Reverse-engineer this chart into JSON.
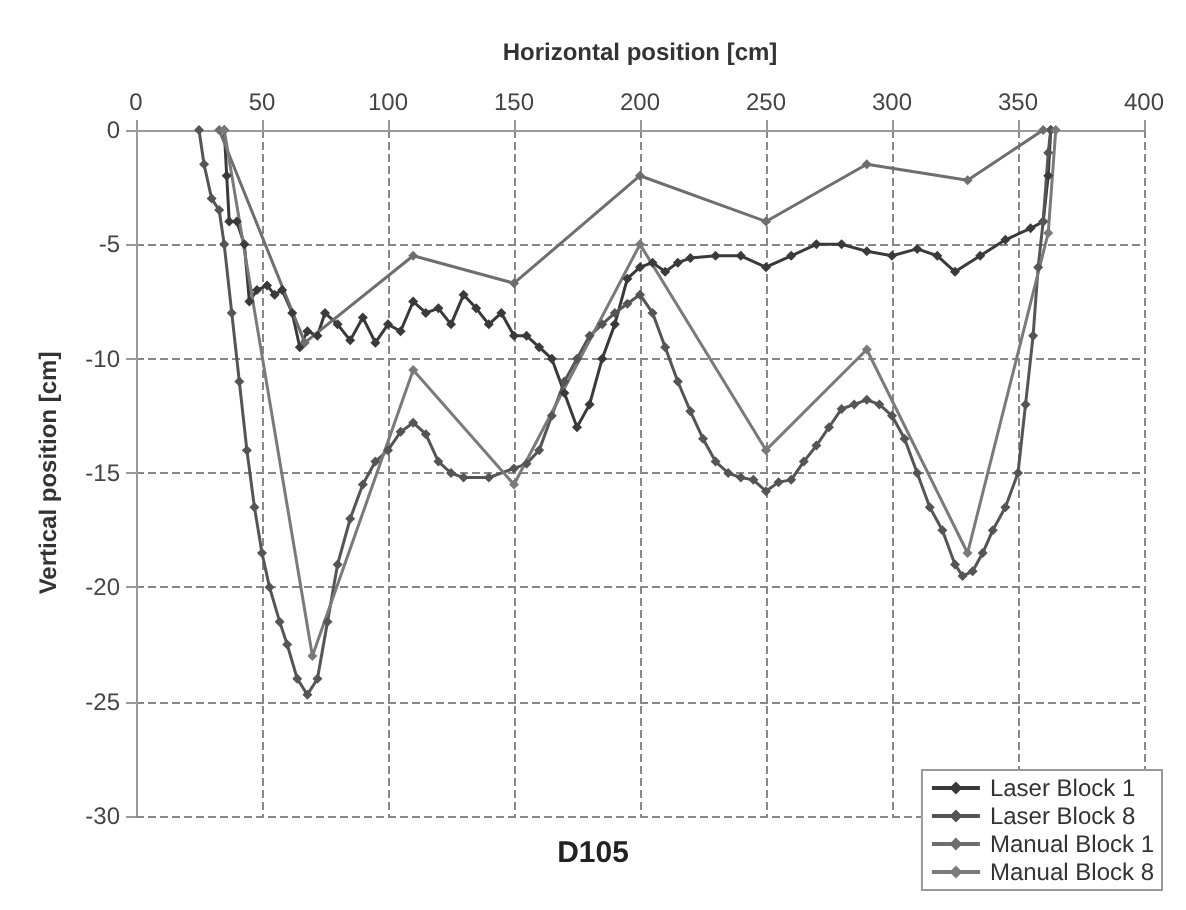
{
  "chart_data": {
    "type": "line",
    "title": "D105",
    "xlabel": "Horizontal position [cm]",
    "ylabel": "Vertical position [cm]",
    "xlim": [
      0,
      400
    ],
    "xticks": [
      0,
      50,
      100,
      150,
      200,
      250,
      300,
      350,
      400
    ],
    "ylim": [
      -30,
      0
    ],
    "yticks": [
      -30,
      -25,
      -20,
      -15,
      -10,
      -5,
      0
    ],
    "grid": true,
    "legend": "bottom right",
    "marker": "diamond",
    "line_style": "solid",
    "series": [
      {
        "name": "Laser Block 1",
        "color": "#3a3a3a",
        "x": [
          35,
          36,
          37,
          40,
          43,
          45,
          48,
          52,
          55,
          58,
          62,
          65,
          68,
          72,
          75,
          80,
          85,
          90,
          95,
          100,
          105,
          110,
          115,
          120,
          125,
          130,
          135,
          140,
          145,
          150,
          155,
          160,
          165,
          170,
          175,
          180,
          185,
          190,
          195,
          200,
          205,
          210,
          215,
          220,
          230,
          240,
          250,
          260,
          270,
          280,
          290,
          300,
          310,
          318,
          325,
          335,
          345,
          355,
          360,
          362,
          363
        ],
        "values": [
          0,
          -2,
          -4,
          -4,
          -5,
          -7.5,
          -7,
          -6.8,
          -7.2,
          -7,
          -8,
          -9.5,
          -8.8,
          -9,
          -8,
          -8.5,
          -9.2,
          -8.2,
          -9.3,
          -8.5,
          -8.8,
          -7.5,
          -8,
          -7.8,
          -8.5,
          -7.2,
          -7.8,
          -8.5,
          -8,
          -9,
          -9,
          -9.5,
          -10,
          -11.5,
          -13,
          -12,
          -10,
          -8.5,
          -6.5,
          -6,
          -5.8,
          -6.2,
          -5.8,
          -5.6,
          -5.5,
          -5.5,
          -6,
          -5.5,
          -5,
          -5,
          -5.3,
          -5.5,
          -5.2,
          -5.5,
          -6.2,
          -5.5,
          -4.8,
          -4.3,
          -4,
          -2,
          0
        ]
      },
      {
        "name": "Laser Block 8",
        "color": "#555555",
        "x": [
          25,
          27,
          30,
          33,
          35,
          38,
          41,
          44,
          47,
          50,
          53,
          57,
          60,
          64,
          68,
          72,
          76,
          80,
          85,
          90,
          95,
          100,
          105,
          110,
          115,
          120,
          125,
          130,
          140,
          150,
          155,
          160,
          165,
          170,
          175,
          180,
          185,
          190,
          195,
          200,
          205,
          210,
          215,
          220,
          225,
          230,
          235,
          240,
          245,
          250,
          255,
          260,
          265,
          270,
          275,
          280,
          285,
          290,
          295,
          300,
          305,
          310,
          315,
          320,
          325,
          328,
          332,
          336,
          340,
          345,
          350,
          353,
          356,
          358,
          360,
          362,
          363
        ],
        "values": [
          0,
          -1.5,
          -3,
          -3.5,
          -5,
          -8,
          -11,
          -14,
          -16.5,
          -18.5,
          -20,
          -21.5,
          -22.5,
          -24,
          -24.7,
          -24,
          -21.5,
          -19,
          -17,
          -15.5,
          -14.5,
          -14,
          -13.2,
          -12.8,
          -13.3,
          -14.5,
          -15,
          -15.2,
          -15.2,
          -14.8,
          -14.6,
          -14,
          -12.5,
          -11,
          -10,
          -9,
          -8.5,
          -8,
          -7.6,
          -7.2,
          -8,
          -9.5,
          -11,
          -12.3,
          -13.5,
          -14.5,
          -15,
          -15.2,
          -15.3,
          -15.8,
          -15.4,
          -15.3,
          -14.5,
          -13.8,
          -13,
          -12.2,
          -12,
          -11.8,
          -12,
          -12.5,
          -13.5,
          -15,
          -16.5,
          -17.5,
          -19,
          -19.5,
          -19.3,
          -18.5,
          -17.5,
          -16.5,
          -15,
          -12,
          -9,
          -6,
          -4,
          -1,
          0
        ]
      },
      {
        "name": "Manual Block 1",
        "color": "#6e6e6e",
        "x": [
          33,
          67,
          110,
          150,
          200,
          250,
          290,
          330,
          360
        ],
        "values": [
          0,
          -9.3,
          -5.5,
          -6.7,
          -2,
          -4,
          -1.5,
          -2.2,
          0
        ]
      },
      {
        "name": "Manual Block 8",
        "color": "#7a7a7a",
        "x": [
          35,
          70,
          110,
          150,
          200,
          250,
          290,
          330,
          362,
          365
        ],
        "values": [
          0,
          -23,
          -10.5,
          -15.5,
          -5,
          -14,
          -9.6,
          -18.5,
          -4.5,
          0
        ]
      }
    ]
  }
}
